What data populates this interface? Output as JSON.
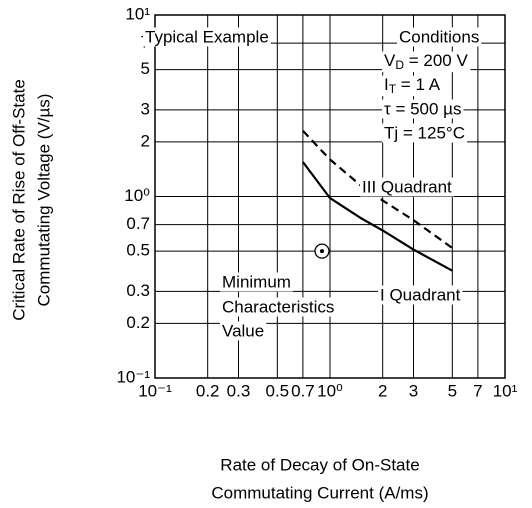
{
  "chart_data": {
    "type": "line",
    "x": [
      0.7,
      1,
      1.5,
      2,
      3,
      5
    ],
    "series": [
      {
        "name": "III Quadrant",
        "color": "#000000",
        "dashed": true,
        "values": [
          2.3,
          1.6,
          1.15,
          0.95,
          0.74,
          0.52
        ]
      },
      {
        "name": "I Quadrant",
        "color": "#000000",
        "dashed": false,
        "values": [
          1.55,
          0.98,
          0.76,
          0.65,
          0.51,
          0.39
        ]
      }
    ],
    "marker": {
      "x": 0.9,
      "y": 0.5
    },
    "xscale": "log",
    "yscale": "log",
    "grid": true,
    "xlim": [
      0.1,
      10
    ],
    "ylim": [
      0.1,
      10
    ],
    "xticks": [
      {
        "value": 0.1,
        "label": "10⁻¹"
      },
      2,
      3,
      5,
      7,
      0.2,
      0.3,
      0.5,
      0.7,
      {
        "value": 1,
        "label": "10⁰"
      },
      {
        "value": 10,
        "label": "10¹"
      }
    ],
    "yticks": [
      {
        "value": 0.1,
        "label": "10⁻¹"
      },
      0.2,
      0.3,
      0.5,
      0.7,
      {
        "value": 1,
        "label": "10⁰"
      },
      2,
      3,
      5,
      7,
      {
        "value": 10,
        "label": "10¹"
      }
    ],
    "annotations": {
      "typical": "Typical Example",
      "conditions": [
        "Conditions",
        {
          "main": "V",
          "sub": "D",
          "rest": " = 200 V"
        },
        {
          "main": "I",
          "sub": "T",
          "rest": " = 1 A"
        },
        "τ = 500 µs",
        "Tj = 125°C"
      ],
      "minimum": [
        "Minimum",
        "Characteristics",
        "Value"
      ]
    },
    "ylabel": [
      "Critical Rate of Rise of Off-State",
      "Commutating Voltage   (V/µs)"
    ],
    "xlabel": [
      "Rate of Decay of On-State",
      "Commutating Current  (A/ms)"
    ]
  }
}
